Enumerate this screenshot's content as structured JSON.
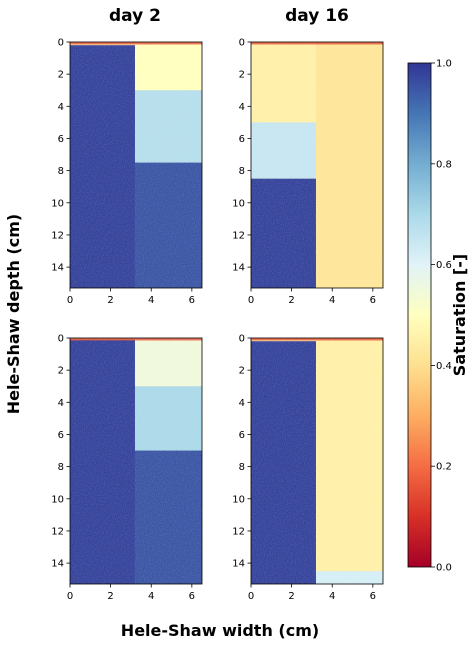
{
  "chart_data": {
    "type": "heatmap",
    "column_titles": [
      "day 2",
      "day 16"
    ],
    "xlabel": "Hele-Shaw width (cm)",
    "ylabel": "Hele-Shaw depth (cm)",
    "x_ticks": [
      "0",
      "2",
      "4",
      "6"
    ],
    "y_ticks": [
      "0",
      "2",
      "4",
      "6",
      "8",
      "10",
      "12",
      "14"
    ],
    "xlim": [
      0,
      6.5
    ],
    "ylim": [
      15.3,
      0
    ],
    "y_direction": "inverted",
    "colorbar": {
      "label": "Saturation [-]",
      "ticks": [
        "0.0",
        "0.2",
        "0.4",
        "0.6",
        "0.8",
        "1.0"
      ],
      "range": [
        0,
        1
      ],
      "colormap": "RdYlBu",
      "colors": [
        "#a50026",
        "#d73027",
        "#f46d43",
        "#fdae61",
        "#fee090",
        "#ffffbf",
        "#e0f3f8",
        "#abd9e9",
        "#74add1",
        "#4575b4",
        "#313695"
      ]
    },
    "panels": [
      {
        "row": 1,
        "column": "day 2",
        "regions": [
          {
            "x": [
              0,
              3.2
            ],
            "y": [
              0.2,
              15.3
            ],
            "saturation": 0.98
          },
          {
            "x": [
              3.2,
              6.5
            ],
            "y": [
              0,
              3
            ],
            "saturation": 0.5
          },
          {
            "x": [
              3.2,
              6.5
            ],
            "y": [
              3,
              7.5
            ],
            "saturation": 0.68
          },
          {
            "x": [
              3.2,
              6.5
            ],
            "y": [
              7.5,
              15.3
            ],
            "saturation": 0.95
          }
        ]
      },
      {
        "row": 1,
        "column": "day 16",
        "regions": [
          {
            "x": [
              0,
              3.2
            ],
            "y": [
              0,
              5
            ],
            "saturation": 0.45
          },
          {
            "x": [
              0,
              3.2
            ],
            "y": [
              5,
              8.5
            ],
            "saturation": 0.65
          },
          {
            "x": [
              0,
              3.2
            ],
            "y": [
              8.5,
              15.3
            ],
            "saturation": 0.98
          },
          {
            "x": [
              3.2,
              6.5
            ],
            "y": [
              0,
              15.3
            ],
            "saturation": 0.42
          }
        ]
      },
      {
        "row": 2,
        "column": "day 2",
        "regions": [
          {
            "x": [
              0,
              3.2
            ],
            "y": [
              0.1,
              15.3
            ],
            "saturation": 0.98
          },
          {
            "x": [
              3.2,
              6.5
            ],
            "y": [
              0,
              3
            ],
            "saturation": 0.55
          },
          {
            "x": [
              3.2,
              6.5
            ],
            "y": [
              3,
              7
            ],
            "saturation": 0.7
          },
          {
            "x": [
              3.2,
              6.5
            ],
            "y": [
              7,
              15.3
            ],
            "saturation": 0.95
          }
        ]
      },
      {
        "row": 2,
        "column": "day 16",
        "regions": [
          {
            "x": [
              0,
              3.2
            ],
            "y": [
              0.2,
              15.3
            ],
            "saturation": 0.98
          },
          {
            "x": [
              3.2,
              6.5
            ],
            "y": [
              0,
              14.5
            ],
            "saturation": 0.45
          },
          {
            "x": [
              3.2,
              6.5
            ],
            "y": [
              14.5,
              15.3
            ],
            "saturation": 0.62
          }
        ]
      }
    ]
  }
}
